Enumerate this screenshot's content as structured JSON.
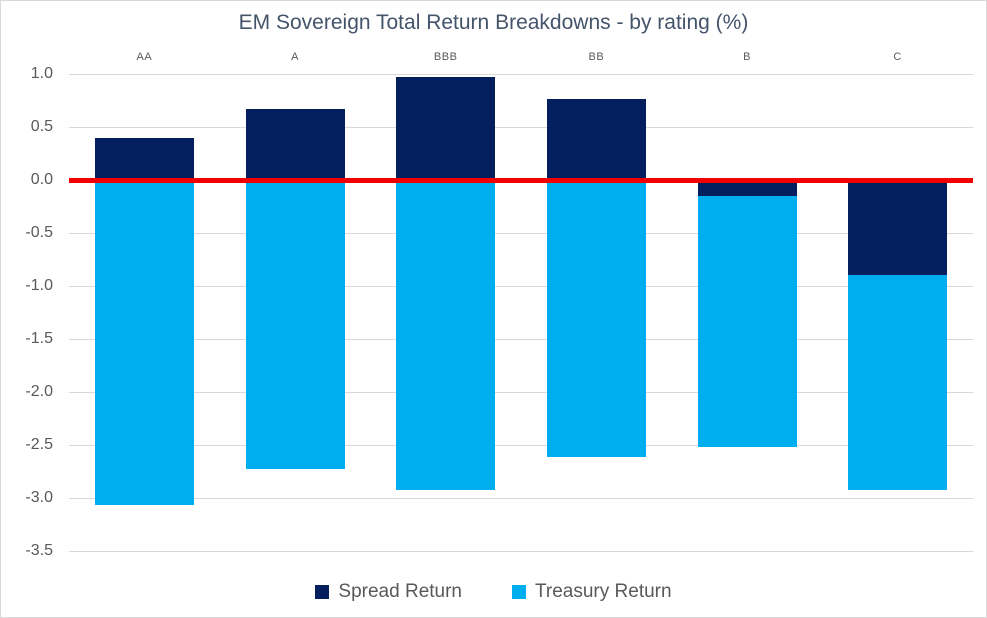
{
  "chart_data": {
    "type": "bar",
    "stacked": true,
    "title": "EM Sovereign Total Return Breakdowns - by rating (%)",
    "categories": [
      "AA",
      "A",
      "BBB",
      "BB",
      "B",
      "C"
    ],
    "series": [
      {
        "name": "Spread Return",
        "color": "#041f5d",
        "values": [
          0.4,
          0.67,
          0.97,
          0.76,
          -0.15,
          -0.9
        ]
      },
      {
        "name": "Treasury Return",
        "color": "#00aeef",
        "values": [
          -3.07,
          -2.73,
          -2.92,
          -2.61,
          -2.37,
          -2.02
        ]
      }
    ],
    "y_ticks": [
      "1.0",
      "0.5",
      "0.0",
      "-0.5",
      "-1.0",
      "-1.5",
      "-2.0",
      "-2.5",
      "-3.0",
      "-3.5"
    ],
    "ylim": [
      -3.5,
      1.0
    ],
    "grid": true,
    "zero_line_color": "#f20000",
    "legend_position": "bottom",
    "category_labels_position": "top"
  },
  "style": {
    "gridline_color": "#d9d9d9",
    "axis_text_color": "#595959",
    "title_color": "#44546a"
  }
}
